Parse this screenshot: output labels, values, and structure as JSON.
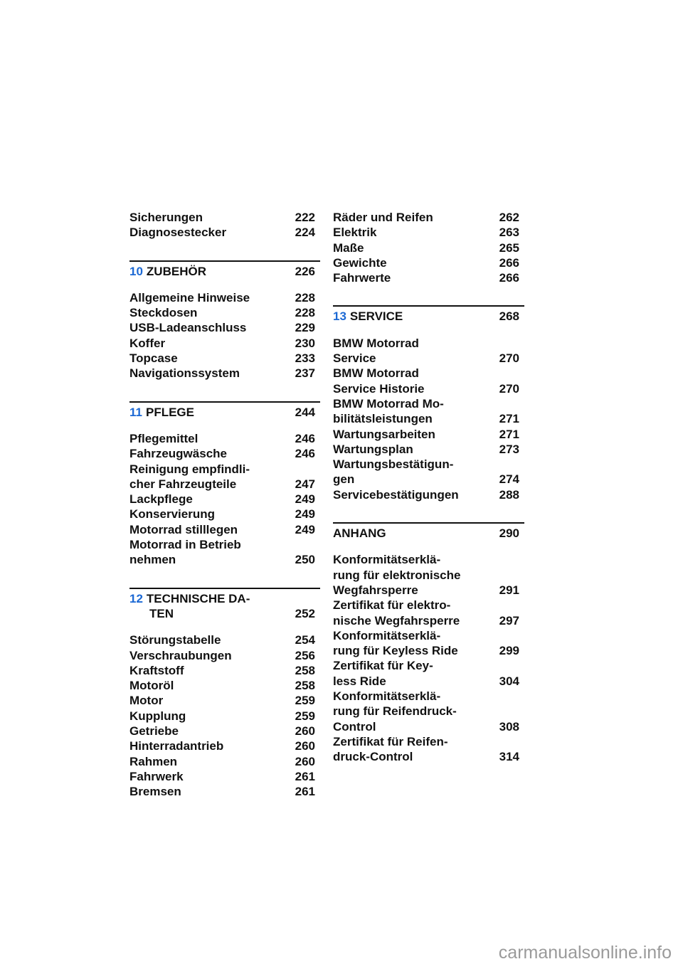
{
  "columns": [
    {
      "sections": [
        {
          "heading": null,
          "items": [
            {
              "lines": [
                "Sicherungen"
              ],
              "page": "222"
            },
            {
              "lines": [
                "Diagnosestecker"
              ],
              "page": "224"
            }
          ]
        },
        {
          "heading": {
            "num": "10",
            "lines": [
              "ZUBEHÖR"
            ],
            "page": "226"
          },
          "items": [
            {
              "lines": [
                "Allgemeine Hinweise"
              ],
              "page": "228"
            },
            {
              "lines": [
                "Steckdosen"
              ],
              "page": "228"
            },
            {
              "lines": [
                "USB-Ladeanschluss"
              ],
              "page": "229"
            },
            {
              "lines": [
                "Koffer"
              ],
              "page": "230"
            },
            {
              "lines": [
                "Topcase"
              ],
              "page": "233"
            },
            {
              "lines": [
                "Navigationssystem"
              ],
              "page": "237"
            }
          ]
        },
        {
          "heading": {
            "num": "11",
            "lines": [
              "PFLEGE"
            ],
            "page": "244"
          },
          "items": [
            {
              "lines": [
                "Pflegemittel"
              ],
              "page": "246"
            },
            {
              "lines": [
                "Fahrzeugwäsche"
              ],
              "page": "246"
            },
            {
              "lines": [
                "Reinigung empfindli-",
                "cher Fahrzeugteile"
              ],
              "page": "247"
            },
            {
              "lines": [
                "Lackpflege"
              ],
              "page": "249"
            },
            {
              "lines": [
                "Konservierung"
              ],
              "page": "249"
            },
            {
              "lines": [
                "Motorrad stilllegen"
              ],
              "page": "249"
            },
            {
              "lines": [
                "Motorrad in Betrieb",
                "nehmen"
              ],
              "page": "250"
            }
          ]
        },
        {
          "heading": {
            "num": "12",
            "lines": [
              "TECHNISCHE DA-",
              "TEN"
            ],
            "page": "252"
          },
          "items": [
            {
              "lines": [
                "Störungstabelle"
              ],
              "page": "254"
            },
            {
              "lines": [
                "Verschraubungen"
              ],
              "page": "256"
            },
            {
              "lines": [
                "Kraftstoff"
              ],
              "page": "258"
            },
            {
              "lines": [
                "Motoröl"
              ],
              "page": "258"
            },
            {
              "lines": [
                "Motor"
              ],
              "page": "259"
            },
            {
              "lines": [
                "Kupplung"
              ],
              "page": "259"
            },
            {
              "lines": [
                "Getriebe"
              ],
              "page": "260"
            },
            {
              "lines": [
                "Hinterradantrieb"
              ],
              "page": "260"
            },
            {
              "lines": [
                "Rahmen"
              ],
              "page": "260"
            },
            {
              "lines": [
                "Fahrwerk"
              ],
              "page": "261"
            },
            {
              "lines": [
                "Bremsen"
              ],
              "page": "261"
            }
          ]
        }
      ]
    },
    {
      "sections": [
        {
          "heading": null,
          "items": [
            {
              "lines": [
                "Räder und Reifen"
              ],
              "page": "262"
            },
            {
              "lines": [
                "Elektrik"
              ],
              "page": "263"
            },
            {
              "lines": [
                "Maße"
              ],
              "page": "265"
            },
            {
              "lines": [
                "Gewichte"
              ],
              "page": "266"
            },
            {
              "lines": [
                "Fahrwerte"
              ],
              "page": "266"
            }
          ]
        },
        {
          "heading": {
            "num": "13",
            "lines": [
              "SERVICE"
            ],
            "page": "268"
          },
          "items": [
            {
              "lines": [
                "BMW Motorrad",
                "Service"
              ],
              "page": "270"
            },
            {
              "lines": [
                "BMW Motorrad",
                "Service Historie"
              ],
              "page": "270"
            },
            {
              "lines": [
                "BMW Motorrad Mo-",
                "bilitätsleistungen"
              ],
              "page": "271"
            },
            {
              "lines": [
                "Wartungsarbeiten"
              ],
              "page": "271"
            },
            {
              "lines": [
                "Wartungsplan"
              ],
              "page": "273"
            },
            {
              "lines": [
                "Wartungsbestätigun-",
                "gen"
              ],
              "page": "274"
            },
            {
              "lines": [
                "Servicebestätigungen"
              ],
              "page": "288"
            }
          ]
        },
        {
          "heading": {
            "num": "",
            "lines": [
              "ANHANG"
            ],
            "page": "290"
          },
          "items": [
            {
              "lines": [
                "Konformitätserklä-",
                "rung für elektronische",
                "Wegfahrsperre"
              ],
              "page": "291"
            },
            {
              "lines": [
                "Zertifikat für elektro-",
                "nische Wegfahrsperre"
              ],
              "page": "297"
            },
            {
              "lines": [
                "Konformitätserklä-",
                "rung für Keyless Ride"
              ],
              "page": "299"
            },
            {
              "lines": [
                "Zertifikat für Key-",
                "less Ride"
              ],
              "page": "304"
            },
            {
              "lines": [
                "Konformitätserklä-",
                "rung für Reifendruck-",
                "Control"
              ],
              "page": "308"
            },
            {
              "lines": [
                "Zertifikat für Reifen-",
                "druck-Control"
              ],
              "page": "314"
            }
          ]
        }
      ]
    }
  ],
  "watermark": "carmanualsonline.info",
  "colors": {
    "chapter_number": "#1c69d4",
    "text": "#111111"
  }
}
